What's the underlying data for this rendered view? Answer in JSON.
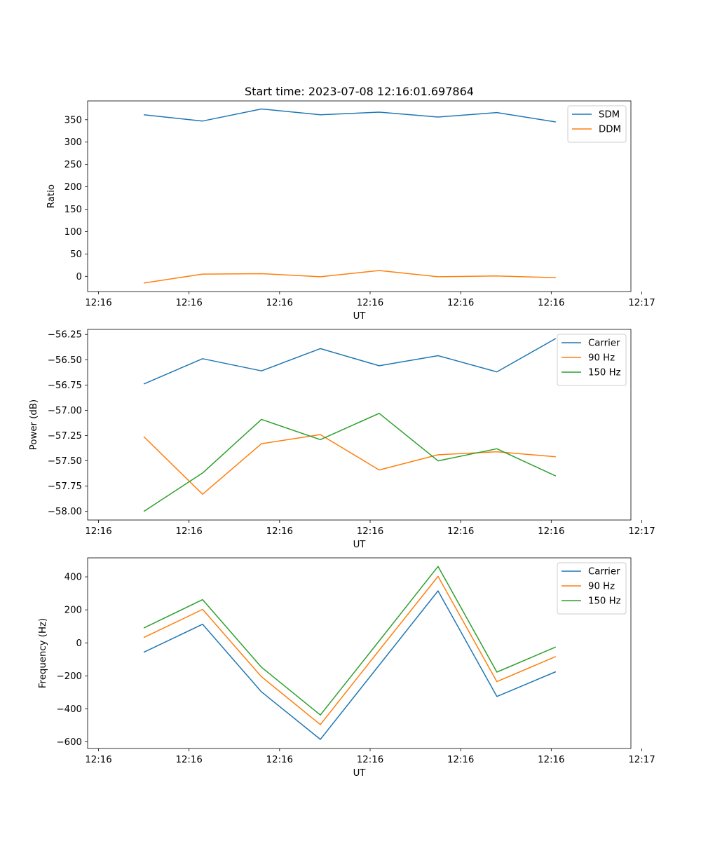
{
  "title": "Start time: 2023-07-08 12:16:01.697864",
  "colors": {
    "c0": "#1f77b4",
    "c1": "#ff7f0e",
    "c2": "#2ca02c"
  },
  "chart_data": [
    {
      "type": "line",
      "xlabel": "UT",
      "ylabel": "Ratio",
      "xticks": [
        "12:16",
        "12:16",
        "12:16",
        "12:16",
        "12:16",
        "12:16",
        "12:16"
      ],
      "xticks_last": "12:17",
      "xlim": [
        -0.12,
        5.88
      ],
      "ylim": [
        -34,
        392
      ],
      "yticks": [
        0,
        50,
        100,
        150,
        200,
        250,
        300,
        350
      ],
      "ytick_labels": [
        "0",
        "50",
        "100",
        "150",
        "200",
        "250",
        "300",
        "350"
      ],
      "x": [
        0.5,
        1.15,
        1.8,
        2.45,
        3.1,
        3.75,
        4.4,
        5.05
      ],
      "legend": "upper right",
      "series": [
        {
          "name": "SDM",
          "color": "#1f77b4",
          "values": [
            361,
            347,
            374,
            361,
            367,
            356,
            366,
            345
          ]
        },
        {
          "name": "DDM",
          "color": "#ff7f0e",
          "values": [
            -15,
            5,
            6,
            -1,
            13,
            -1,
            1,
            -3
          ]
        }
      ]
    },
    {
      "type": "line",
      "xlabel": "UT",
      "ylabel": "Power (dB)",
      "xticks": [
        "12:16",
        "12:16",
        "12:16",
        "12:16",
        "12:16",
        "12:16",
        "12:16"
      ],
      "xticks_last": "12:17",
      "xlim": [
        -0.12,
        5.88
      ],
      "ylim": [
        -58.085,
        -56.2
      ],
      "yticks": [
        -58.0,
        -57.75,
        -57.5,
        -57.25,
        -57.0,
        -56.75,
        -56.5,
        -56.25
      ],
      "ytick_labels": [
        "−58.00",
        "−57.75",
        "−57.50",
        "−57.25",
        "−57.00",
        "−56.75",
        "−56.50",
        "−56.25"
      ],
      "x": [
        0.5,
        1.15,
        1.8,
        2.45,
        3.1,
        3.75,
        4.4,
        5.05
      ],
      "legend": "upper right",
      "series": [
        {
          "name": "Carrier",
          "color": "#1f77b4",
          "values": [
            -56.74,
            -56.49,
            -56.61,
            -56.39,
            -56.56,
            -56.46,
            -56.62,
            -56.29
          ]
        },
        {
          "name": "90 Hz",
          "color": "#ff7f0e",
          "values": [
            -57.26,
            -57.83,
            -57.33,
            -57.24,
            -57.59,
            -57.44,
            -57.41,
            -57.46
          ]
        },
        {
          "name": "150 Hz",
          "color": "#2ca02c",
          "values": [
            -58.0,
            -57.62,
            -57.09,
            -57.29,
            -57.03,
            -57.5,
            -57.38,
            -57.65
          ]
        }
      ]
    },
    {
      "type": "line",
      "xlabel": "UT",
      "ylabel": "Frequency (Hz)",
      "xticks": [
        "12:16",
        "12:16",
        "12:16",
        "12:16",
        "12:16",
        "12:16",
        "12:16"
      ],
      "xticks_last": "12:17",
      "xlim": [
        -0.12,
        5.88
      ],
      "ylim": [
        -640,
        515
      ],
      "yticks": [
        -600,
        -400,
        -200,
        0,
        200,
        400
      ],
      "ytick_labels": [
        "−600",
        "−400",
        "−200",
        "0",
        "200",
        "400"
      ],
      "x": [
        0.5,
        1.15,
        1.8,
        2.45,
        3.1,
        3.75,
        4.4,
        5.05
      ],
      "legend": "upper right",
      "series": [
        {
          "name": "Carrier",
          "color": "#1f77b4",
          "values": [
            -57,
            113,
            -297,
            -585,
            -135,
            315,
            -325,
            -175
          ]
        },
        {
          "name": "90 Hz",
          "color": "#ff7f0e",
          "values": [
            32,
            203,
            -205,
            -495,
            -45,
            403,
            -235,
            -83
          ]
        },
        {
          "name": "150 Hz",
          "color": "#2ca02c",
          "values": [
            90,
            262,
            -148,
            -437,
            12,
            463,
            -177,
            -25
          ]
        }
      ]
    }
  ]
}
